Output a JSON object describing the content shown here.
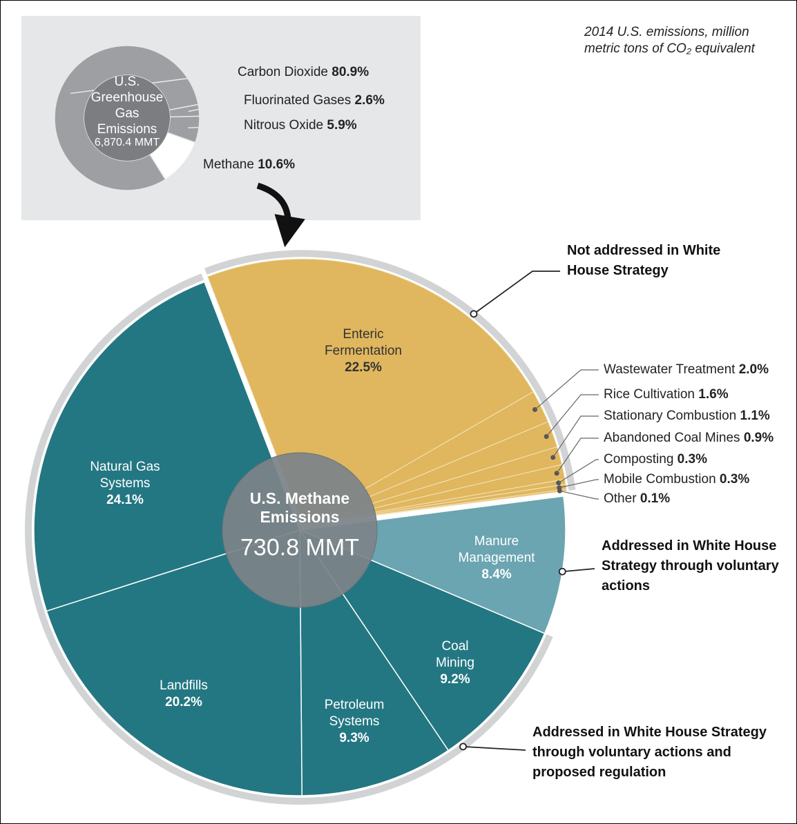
{
  "chart_data": [
    {
      "type": "donut",
      "center_label": "U.S. Greenhouse Gas Emissions",
      "total_label": "6,870.4 MMT",
      "categories": [
        "Carbon Dioxide",
        "Fluorinated Gases",
        "Nitrous Oxide",
        "Methane"
      ],
      "values": [
        80.9,
        2.6,
        5.9,
        10.6
      ],
      "value_labels": [
        "80.9%",
        "2.6%",
        "5.9%",
        "10.6%"
      ],
      "colors": [
        "#9d9fa2",
        "#9d9fa2",
        "#9d9fa2",
        "#ffffff"
      ]
    },
    {
      "type": "pie",
      "subtitle": "2014 U.S. emissions, million metric tons of CO₂ equivalent",
      "center_label": "U.S. Methane Emissions",
      "total_label": "730.8 MMT",
      "categories": [
        "Enteric Fermentation",
        "Wastewater Treatment",
        "Rice Cultivation",
        "Stationary Combustion",
        "Abandoned Coal Mines",
        "Composting",
        "Mobile Combustion",
        "Other",
        "Manure Management",
        "Coal Mining",
        "Petroleum Systems",
        "Landfills",
        "Natural Gas Systems"
      ],
      "values": [
        22.5,
        2.0,
        1.6,
        1.1,
        0.9,
        0.3,
        0.3,
        0.1,
        8.4,
        9.2,
        9.3,
        20.2,
        24.1
      ],
      "value_labels": [
        "22.5%",
        "2.0%",
        "1.6%",
        "1.1%",
        "0.9%",
        "0.3%",
        "0.3%",
        "0.1%",
        "8.4%",
        "9.2%",
        "9.3%",
        "20.2%",
        "24.1%"
      ],
      "colors": [
        "#e0b75e",
        "#e0b75e",
        "#e0b75e",
        "#e0b75e",
        "#e0b75e",
        "#e0b75e",
        "#e0b75e",
        "#e0b75e",
        "#6aa5b1",
        "#237782",
        "#237782",
        "#237782",
        "#237782"
      ],
      "annotations": [
        "Not addressed in White House Strategy",
        "Addressed in White House Strategy through voluntary actions",
        "Addressed in White House Strategy through voluntary actions and proposed regulation"
      ]
    }
  ]
}
